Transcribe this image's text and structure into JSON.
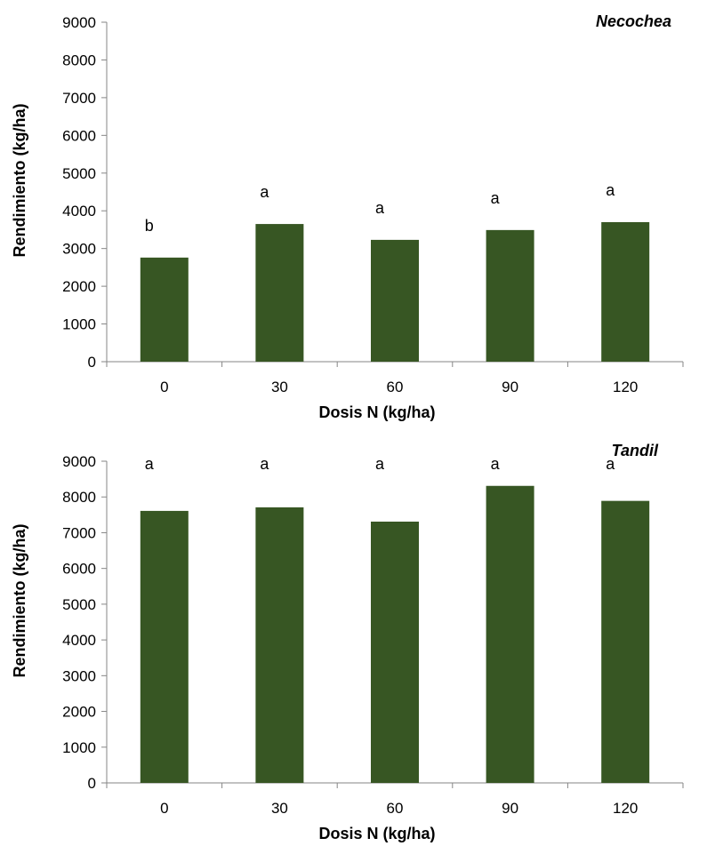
{
  "chart_data": [
    {
      "type": "bar",
      "site_label": "Necochea",
      "xlabel": "Dosis N (kg/ha)",
      "ylabel": "Rendimiento (kg/ha)",
      "categories": [
        "0",
        "30",
        "60",
        "90",
        "120"
      ],
      "values": [
        2760,
        3650,
        3230,
        3490,
        3700
      ],
      "significance_letters": [
        "b",
        "a",
        "a",
        "a",
        "a"
      ],
      "ylim": [
        0,
        9000
      ],
      "yticks": [
        0,
        1000,
        2000,
        3000,
        4000,
        5000,
        6000,
        7000,
        8000,
        9000
      ],
      "bar_color": "#375623",
      "grid": false
    },
    {
      "type": "bar",
      "site_label": "Tandil",
      "xlabel": "Dosis N (kg/ha)",
      "ylabel": "Rendimiento (kg/ha)",
      "categories": [
        "0",
        "30",
        "60",
        "90",
        "120"
      ],
      "values": [
        7610,
        7710,
        7310,
        8310,
        7890
      ],
      "significance_letters": [
        "a",
        "a",
        "a",
        "a",
        "a"
      ],
      "ylim": [
        0,
        9000
      ],
      "yticks": [
        0,
        1000,
        2000,
        3000,
        4000,
        5000,
        6000,
        7000,
        8000,
        9000
      ],
      "bar_color": "#375623",
      "grid": false
    }
  ]
}
